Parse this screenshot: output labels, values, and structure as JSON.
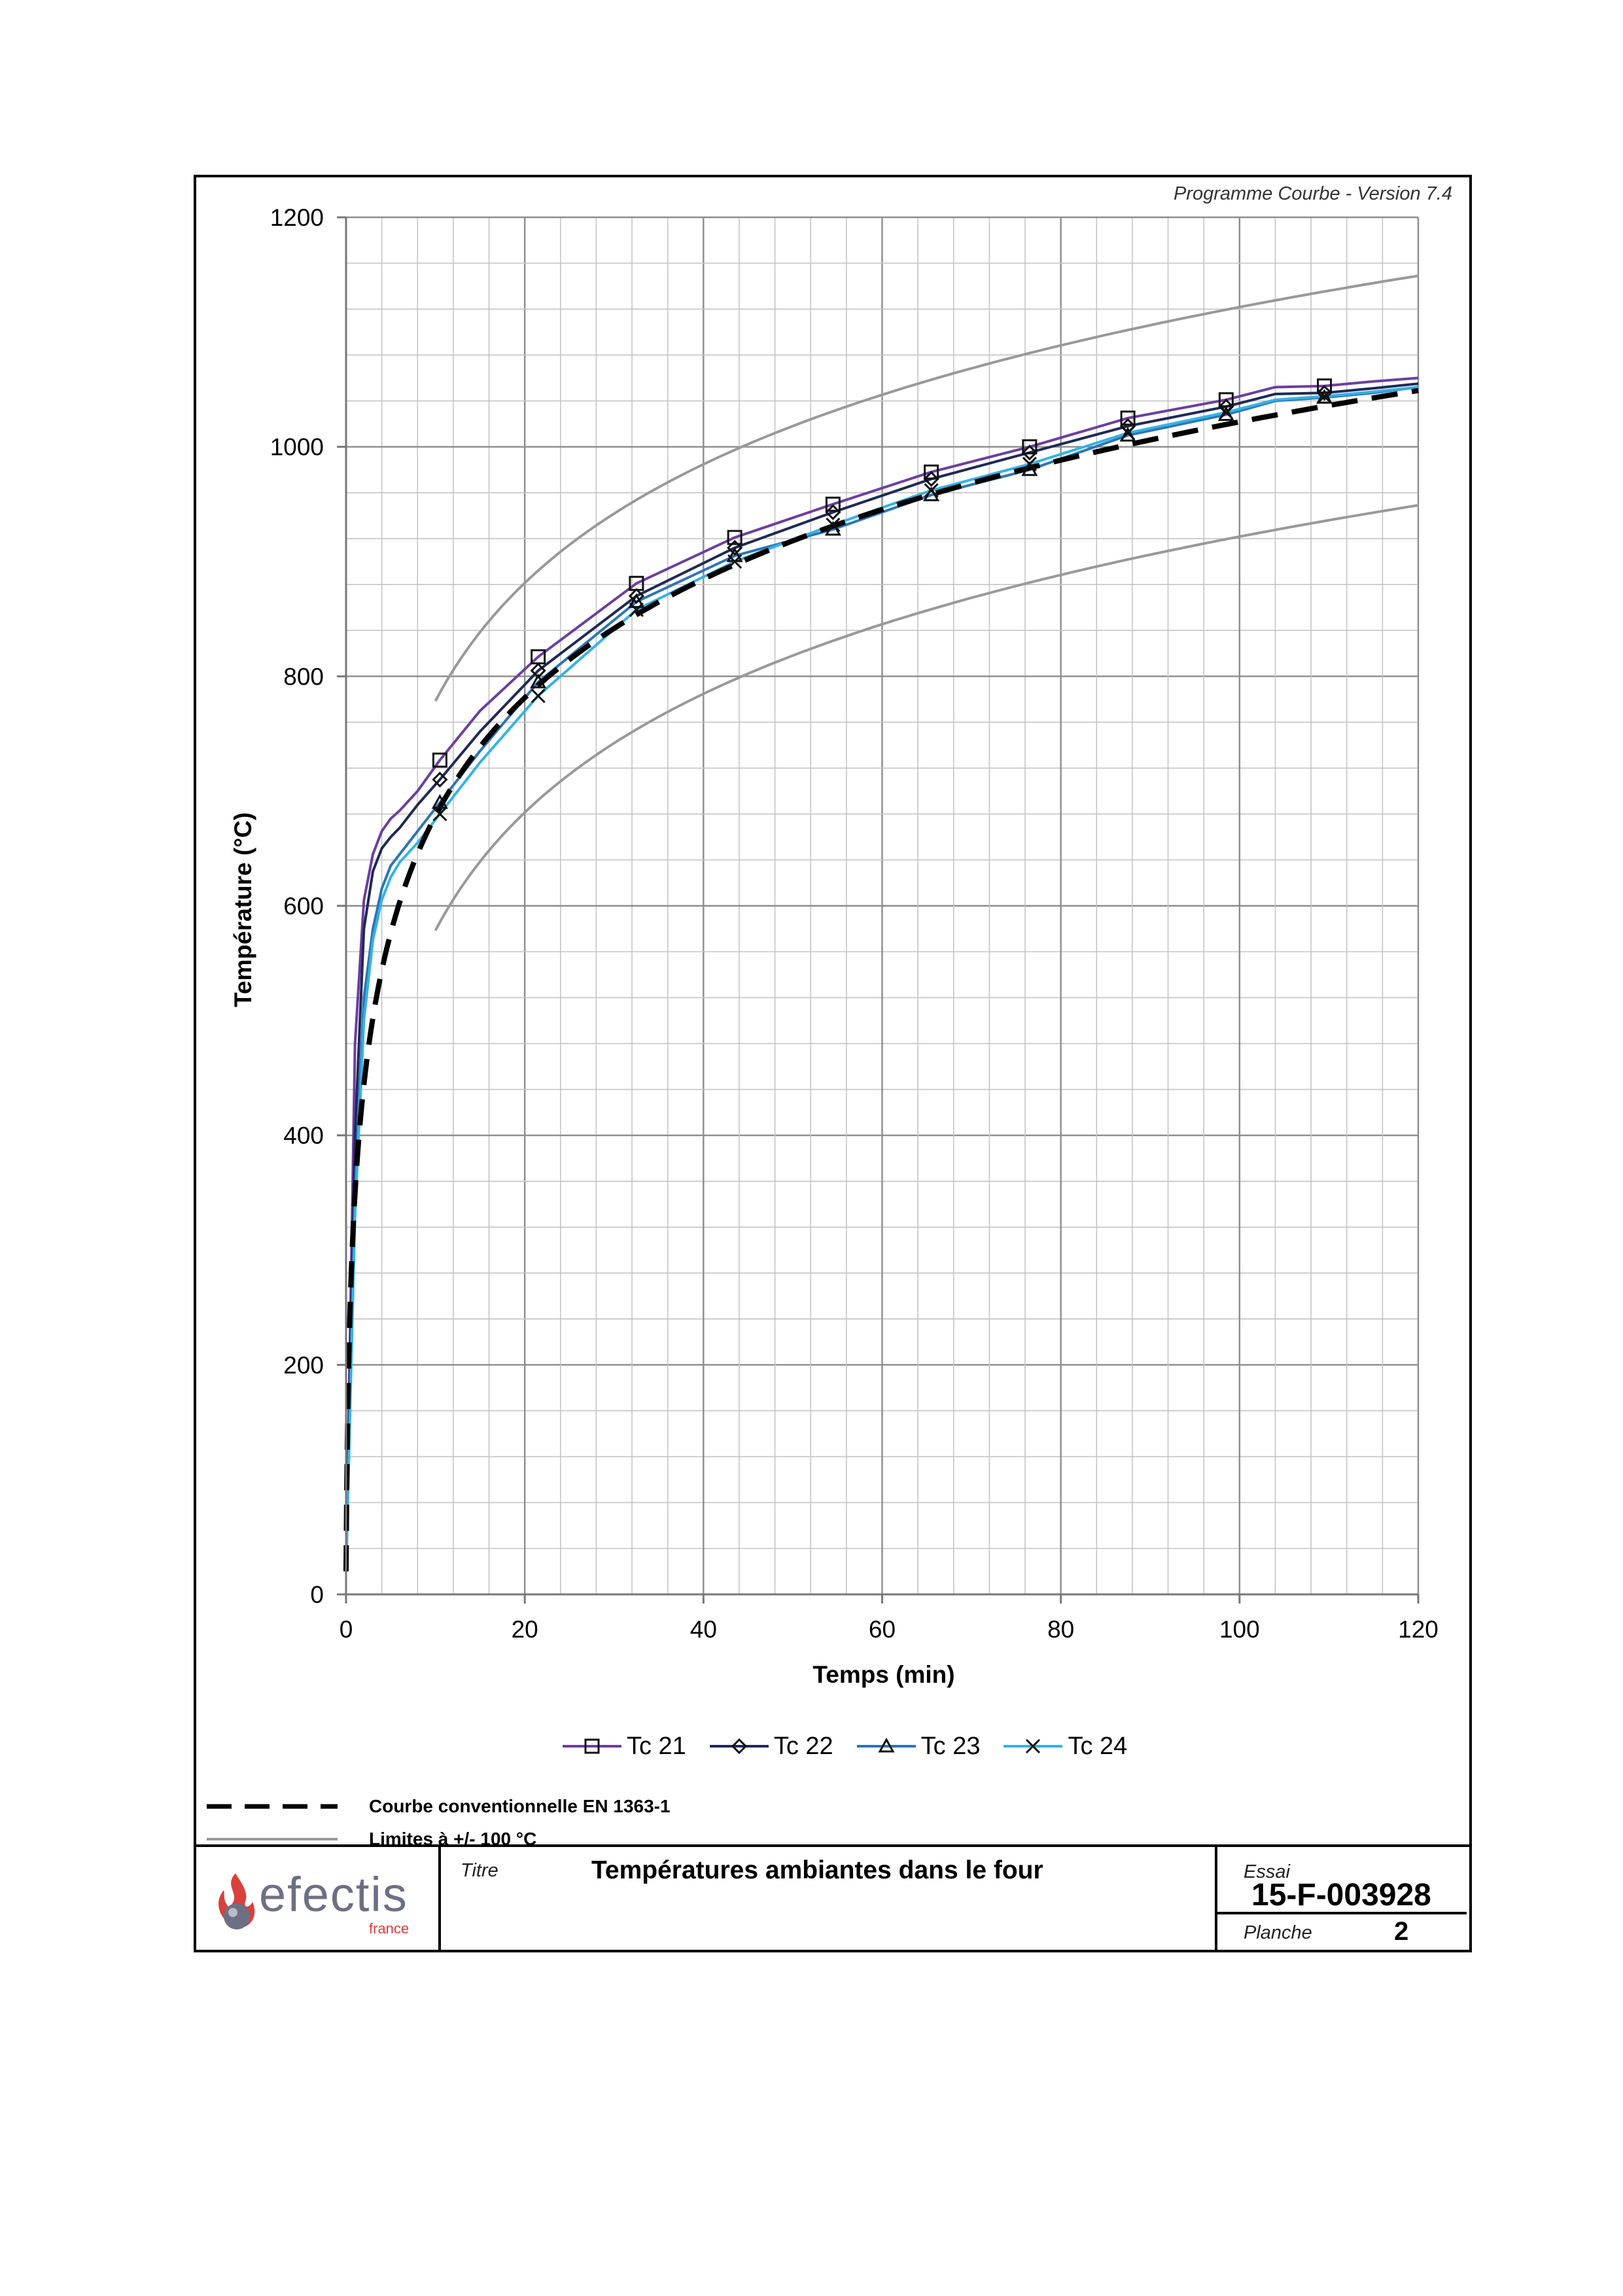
{
  "header": {
    "version_label": "Programme Courbe  - Version 7.4"
  },
  "chart_data": {
    "type": "line",
    "xlabel": "Temps (min)",
    "ylabel": "Température (°C)",
    "xlim": [
      0,
      120
    ],
    "ylim": [
      0,
      1200
    ],
    "x_ticks": [
      0,
      20,
      40,
      60,
      80,
      100,
      120
    ],
    "y_ticks": [
      0,
      200,
      400,
      600,
      800,
      1000,
      1200
    ],
    "grid": true,
    "legend_placement": "bottom",
    "series": [
      {
        "name": "Tc 21",
        "color": "#6b3fa0",
        "marker": "square",
        "x": [
          0,
          1,
          2,
          3,
          4,
          5,
          6,
          8,
          10.5,
          15,
          21.5,
          32.5,
          43.5,
          54.5,
          65.5,
          76.5,
          87.5,
          98.5,
          104,
          109.5,
          115,
          120
        ],
        "y": [
          20,
          480,
          605,
          645,
          665,
          676,
          683,
          700,
          727,
          770,
          817,
          881,
          921,
          950,
          978,
          1000,
          1025,
          1041,
          1052,
          1053,
          1057,
          1060
        ]
      },
      {
        "name": "Tc 22",
        "color": "#1f2a55",
        "marker": "diamond",
        "x": [
          0,
          1,
          2,
          3,
          4,
          5,
          6,
          8,
          10.5,
          15,
          21.5,
          32.5,
          43.5,
          54.5,
          65.5,
          76.5,
          87.5,
          98.5,
          104,
          109.5,
          115,
          120
        ],
        "y": [
          20,
          400,
          580,
          630,
          650,
          660,
          668,
          688,
          710,
          752,
          805,
          870,
          912,
          943,
          972,
          995,
          1018,
          1035,
          1046,
          1047,
          1051,
          1055
        ]
      },
      {
        "name": "Tc 23",
        "color": "#2e75b6",
        "marker": "triangle",
        "x": [
          0,
          1,
          2,
          3,
          4,
          5,
          6,
          8,
          10.5,
          15,
          21.5,
          32.5,
          43.5,
          54.5,
          65.5,
          76.5,
          87.5,
          98.5,
          104,
          109.5,
          115,
          120
        ],
        "y": [
          20,
          350,
          520,
          580,
          615,
          635,
          645,
          665,
          690,
          735,
          795,
          865,
          905,
          928,
          958,
          980,
          1010,
          1028,
          1040,
          1043,
          1047,
          1052
        ]
      },
      {
        "name": "Tc 24",
        "color": "#34b3e4",
        "marker": "x",
        "x": [
          0,
          1,
          2,
          3,
          4,
          5,
          6,
          8,
          10.5,
          15,
          21.5,
          32.5,
          43.5,
          54.5,
          65.5,
          76.5,
          87.5,
          98.5,
          104,
          109.5,
          115,
          120
        ],
        "y": [
          20,
          330,
          500,
          570,
          605,
          625,
          638,
          655,
          680,
          725,
          783,
          858,
          900,
          932,
          962,
          985,
          1012,
          1030,
          1041,
          1044,
          1048,
          1052
        ]
      }
    ],
    "reference_curve": {
      "name": "Courbe conventionnelle EN 1363-1",
      "color": "#000000",
      "formula": "20 + 345*log10(8*t + 1)"
    },
    "limit_curves": {
      "name": "Limites à +/- 100 °C",
      "color": "#999999",
      "offset": 100,
      "x_start": 10
    }
  },
  "reference_legend": {
    "conventional_label": "Courbe conventionnelle EN 1363-1",
    "limits_label": "Limites à +/- 100 °C"
  },
  "title_block": {
    "logo_name": "efectis",
    "logo_sub": "france",
    "title_caption": "Titre",
    "title_text": "Températures ambiantes dans le four",
    "essai_caption": "Essai",
    "essai_value": "15-F-003928",
    "planche_caption": "Planche",
    "planche_value": "2"
  }
}
